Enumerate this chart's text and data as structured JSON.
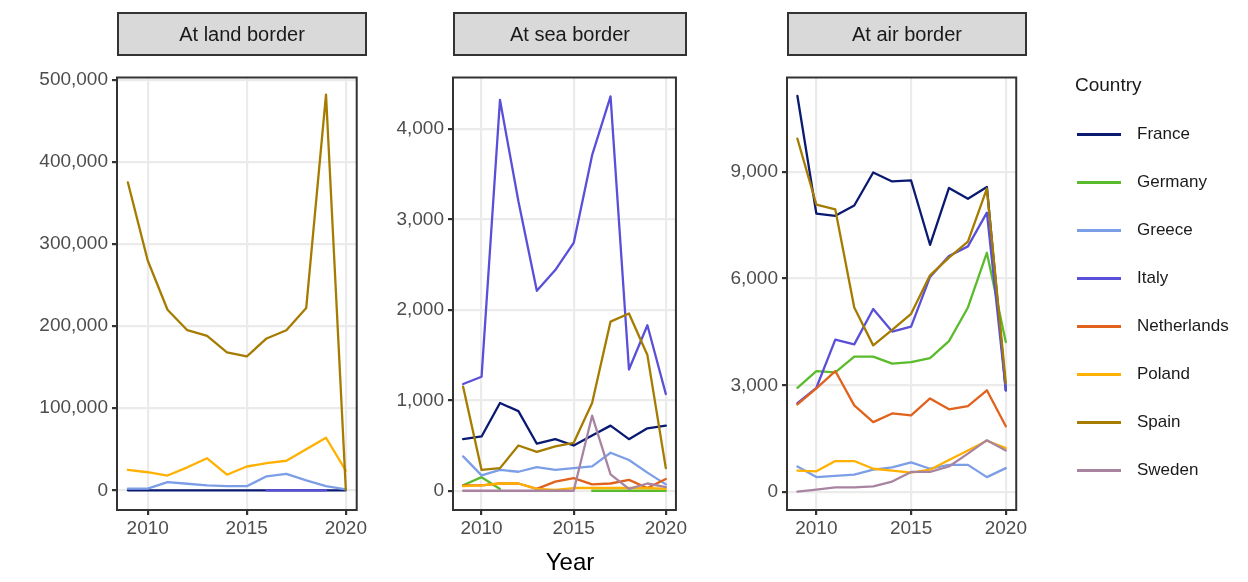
{
  "chart_data": [
    {
      "type": "line",
      "title": "At land border",
      "x": [
        2009,
        2010,
        2011,
        2012,
        2013,
        2014,
        2015,
        2016,
        2017,
        2018,
        2019,
        2020
      ],
      "xlim": [
        2008.45,
        2020.55
      ],
      "xticks": [
        2010,
        2015,
        2020
      ],
      "ylim": [
        -24000,
        503000
      ],
      "yticks": [
        {
          "value": 0,
          "label": "0"
        },
        {
          "value": 100000,
          "label": "100,000"
        },
        {
          "value": 200000,
          "label": "200,000"
        },
        {
          "value": 300000,
          "label": "300,000"
        },
        {
          "value": 400000,
          "label": "400,000"
        },
        {
          "value": 500000,
          "label": "500,000"
        }
      ],
      "grid": true,
      "legend": false,
      "series": [
        {
          "color": "#0a1a72",
          "values": [
            0,
            0,
            0,
            0,
            0,
            0,
            0,
            0,
            0,
            0,
            0,
            0
          ]
        },
        {
          "color": "#7c9ee6",
          "values": [
            2000,
            2000,
            10000,
            8000,
            6000,
            5000,
            5000,
            17000,
            20000,
            12000,
            5000,
            1000
          ]
        },
        {
          "color": "#5a4fd9",
          "values": [
            null,
            null,
            null,
            null,
            null,
            null,
            null,
            0,
            0,
            0,
            0,
            null
          ]
        },
        {
          "color": "#ffb000",
          "values": [
            25000,
            22000,
            18000,
            28000,
            39000,
            19000,
            29000,
            33000,
            36000,
            50000,
            64000,
            24000
          ]
        },
        {
          "color": "#a57c00",
          "values": [
            375000,
            280000,
            220000,
            195000,
            188000,
            168000,
            163000,
            185000,
            195000,
            222000,
            482000,
            1000
          ]
        }
      ]
    },
    {
      "type": "line",
      "title": "At sea border",
      "xlabel": "Year",
      "x": [
        2009,
        2010,
        2011,
        2012,
        2013,
        2014,
        2015,
        2016,
        2017,
        2018,
        2019,
        2020
      ],
      "xlim": [
        2008.45,
        2020.55
      ],
      "xticks": [
        2010,
        2015,
        2020
      ],
      "ylim": [
        -213,
        4570
      ],
      "yticks": [
        {
          "value": 0,
          "label": "0"
        },
        {
          "value": 1000,
          "label": "1,000"
        },
        {
          "value": 2000,
          "label": "2,000"
        },
        {
          "value": 3000,
          "label": "3,000"
        },
        {
          "value": 4000,
          "label": "4,000"
        }
      ],
      "grid": true,
      "legend": false,
      "series": [
        {
          "color": "#0a1a72",
          "values": [
            570,
            600,
            970,
            880,
            520,
            570,
            500,
            610,
            720,
            570,
            690,
            720
          ]
        },
        {
          "color": "#5abb2c",
          "values": [
            60,
            150,
            20,
            null,
            null,
            null,
            null,
            0,
            0,
            0,
            0,
            0
          ]
        },
        {
          "color": "#7c9ee6",
          "values": [
            380,
            170,
            230,
            210,
            260,
            230,
            250,
            270,
            420,
            340,
            200,
            70
          ]
        },
        {
          "color": "#5a4fd9",
          "values": [
            1180,
            1260,
            4320,
            3200,
            2210,
            2440,
            2740,
            3710,
            4360,
            1340,
            1830,
            1070
          ]
        },
        {
          "color": "#e0621c",
          "values": [
            60,
            60,
            80,
            80,
            20,
            100,
            140,
            70,
            80,
            120,
            30,
            130
          ]
        },
        {
          "color": "#ffb000",
          "values": [
            50,
            60,
            80,
            80,
            20,
            10,
            30,
            30,
            30,
            30,
            30,
            20
          ]
        },
        {
          "color": "#a57c00",
          "values": [
            1150,
            230,
            250,
            500,
            430,
            490,
            530,
            970,
            1870,
            1960,
            1500,
            250
          ]
        },
        {
          "color": "#a884a0",
          "values": [
            0,
            0,
            0,
            0,
            0,
            0,
            0,
            830,
            180,
            20,
            80,
            40
          ]
        }
      ]
    },
    {
      "type": "line",
      "title": "At air border",
      "legend_title": "Country",
      "x": [
        2009,
        2010,
        2011,
        2012,
        2013,
        2014,
        2015,
        2016,
        2017,
        2018,
        2019,
        2020
      ],
      "xlim": [
        2008.45,
        2020.55
      ],
      "xticks": [
        2010,
        2015,
        2020
      ],
      "ylim": [
        -500,
        11650
      ],
      "yticks": [
        {
          "value": 0,
          "label": "0"
        },
        {
          "value": 3000,
          "label": "3,000"
        },
        {
          "value": 6000,
          "label": "6,000"
        },
        {
          "value": 9000,
          "label": "9,000"
        }
      ],
      "grid": true,
      "legend": "right",
      "series": [
        {
          "name": "France",
          "color": "#0a1a72",
          "values": [
            11128,
            7825,
            7762,
            8051,
            8980,
            8727,
            8755,
            6949,
            8547,
            8240,
            8574,
            2861
          ]
        },
        {
          "name": "Germany",
          "color": "#5abb2c",
          "values": [
            2933,
            3403,
            3366,
            3809,
            3809,
            3610,
            3655,
            3763,
            4242,
            5189,
            6724,
            4215
          ]
        },
        {
          "name": "Greece",
          "color": "#7c9ee6",
          "values": [
            722,
            424,
            460,
            496,
            632,
            695,
            839,
            659,
            767,
            767,
            424,
            677
          ]
        },
        {
          "name": "Italy",
          "color": "#5a4fd9",
          "values": [
            2500,
            2933,
            4287,
            4152,
            5144,
            4513,
            4648,
            6047,
            6634,
            6904,
            7852,
            2861
          ]
        },
        {
          "name": "Netherlands",
          "color": "#e0621c",
          "values": [
            2464,
            2915,
            3403,
            2437,
            1968,
            2211,
            2157,
            2635,
            2329,
            2419,
            2861,
            1850
          ]
        },
        {
          "name": "Poland",
          "color": "#ffb000",
          "values": [
            605,
            587,
            875,
            875,
            659,
            605,
            551,
            632,
            903,
            1173,
            1444,
            1236
          ]
        },
        {
          "name": "Spain",
          "color": "#a57c00",
          "values": [
            9928,
            8078,
            7942,
            5189,
            4124,
            4558,
            5009,
            6092,
            6588,
            7040,
            8529,
            3068
          ]
        },
        {
          "name": "Sweden",
          "color": "#a884a0",
          "values": [
            18,
            72,
            135,
            135,
            162,
            298,
            569,
            569,
            722,
            1083,
            1462,
            1173
          ]
        }
      ]
    }
  ]
}
